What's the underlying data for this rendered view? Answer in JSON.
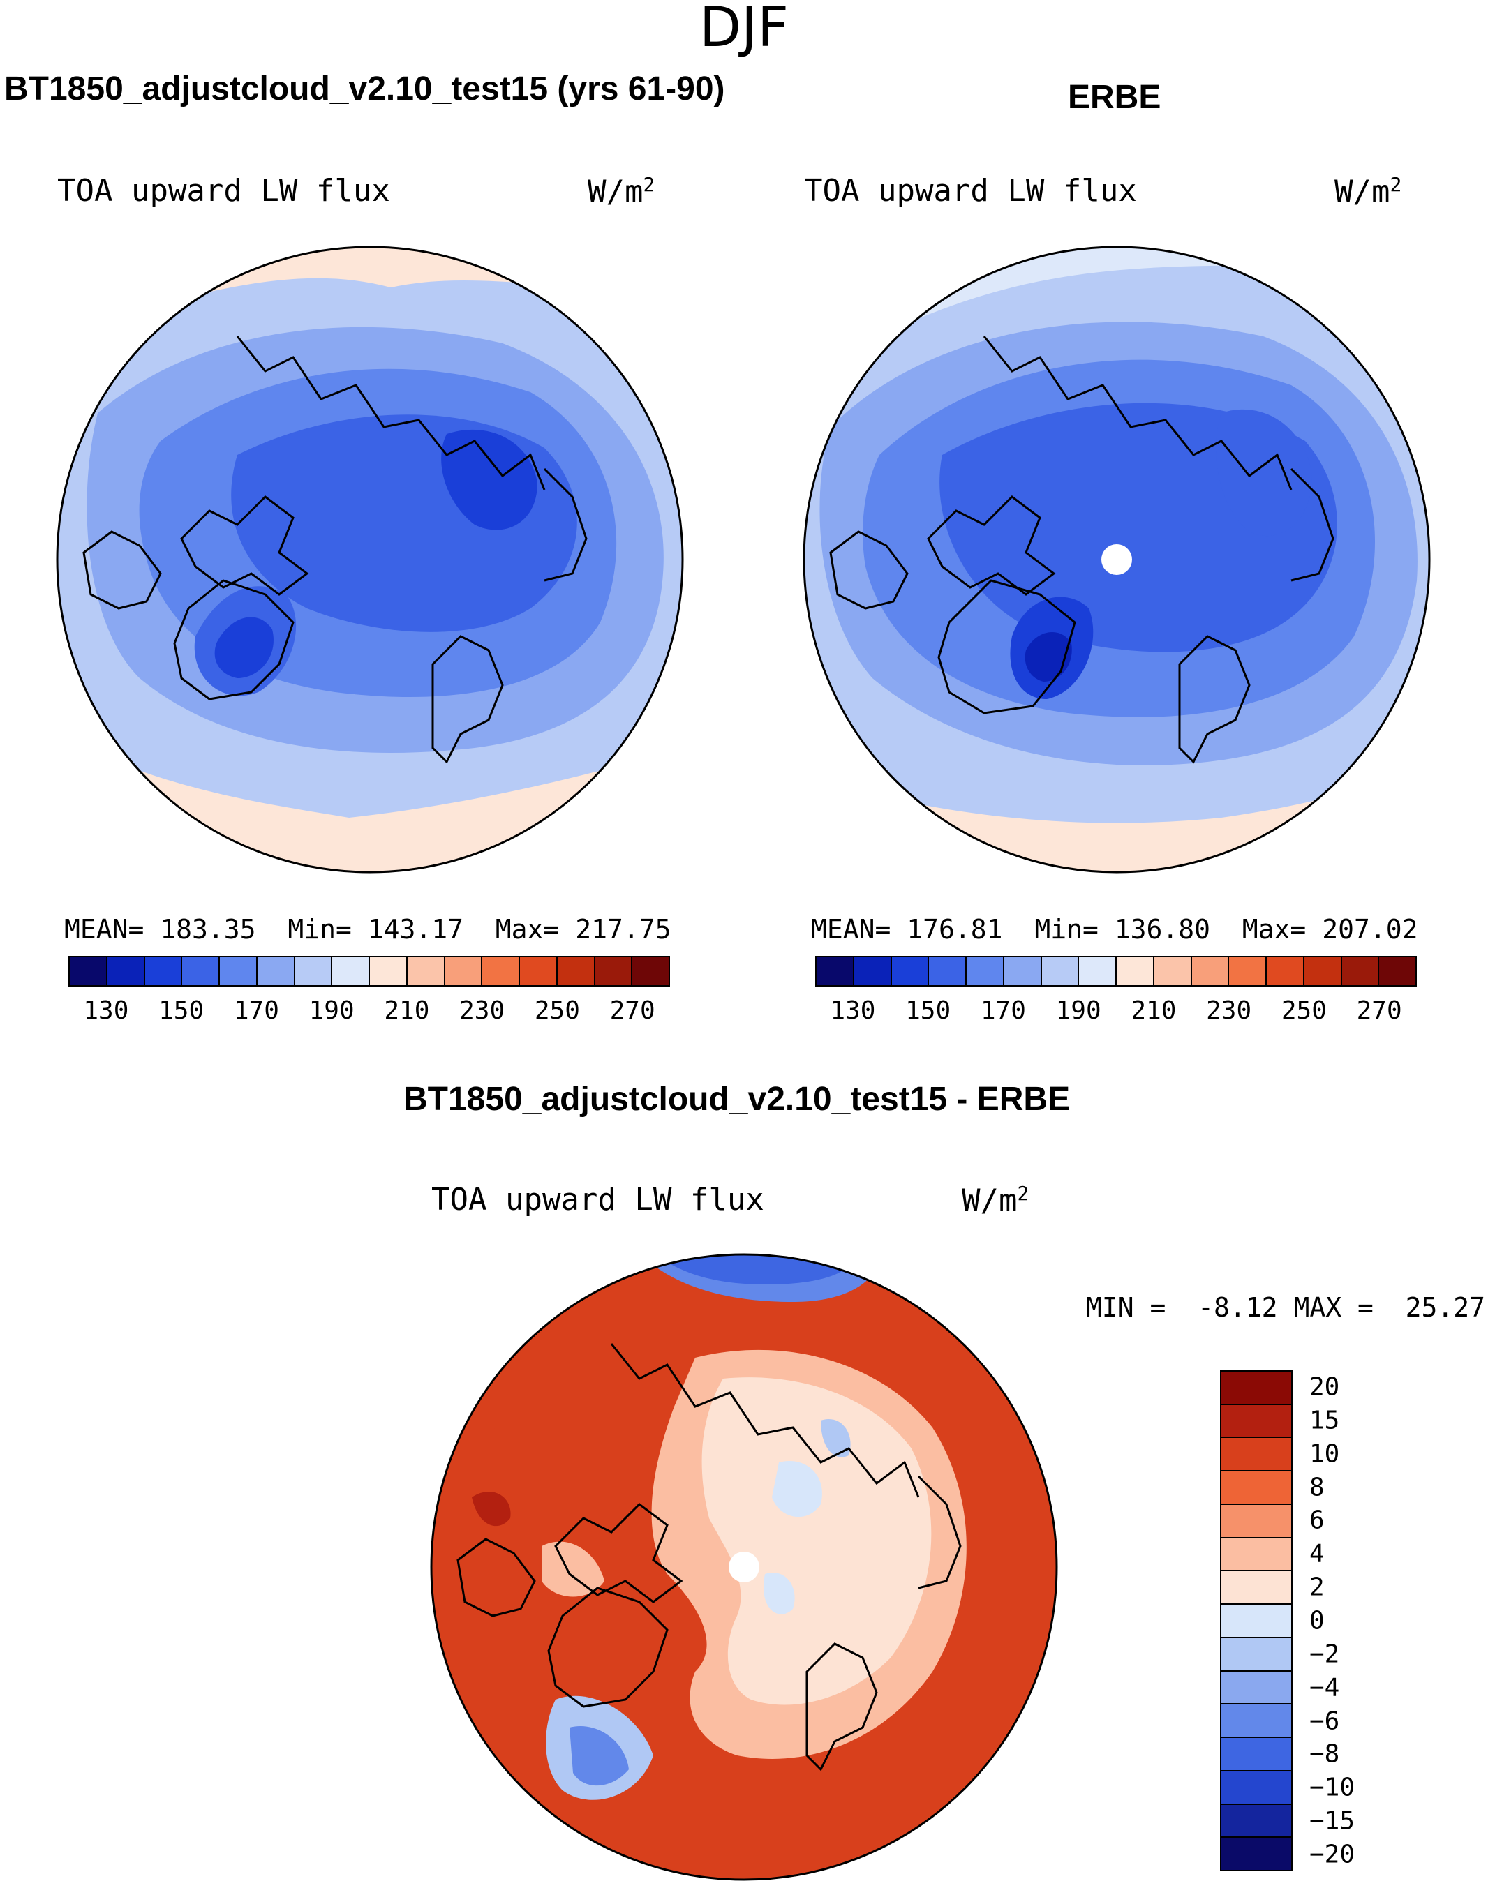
{
  "figure": {
    "season": "DJF"
  },
  "panels": [
    {
      "title": "BT1850_adjustcloud_v2.10_test15 (yrs 61-90)",
      "variable": "TOA upward LW flux",
      "units": "W/m",
      "units_exp": "2",
      "stats": {
        "mean_label": "MEAN=",
        "mean": "183.35",
        "min_label": "Min=",
        "min": "143.17",
        "max_label": "Max=",
        "max": "217.75"
      }
    },
    {
      "title": "ERBE",
      "variable": "TOA upward LW flux",
      "units": "W/m",
      "units_exp": "2",
      "stats": {
        "mean_label": "MEAN=",
        "mean": "176.81",
        "min_label": "Min=",
        "min": "136.80",
        "max_label": "Max=",
        "max": "207.02"
      }
    }
  ],
  "abs_colorbar": {
    "colors": [
      "#08086b",
      "#0a22b8",
      "#1a3fd8",
      "#3b63e6",
      "#5f86ee",
      "#8aa8f2",
      "#b7cbf6",
      "#dde8fa",
      "#fde6d8",
      "#fbc4aa",
      "#f89f7a",
      "#f27343",
      "#e04a20",
      "#c3300f",
      "#9a1a0a",
      "#6e0606"
    ],
    "ticks": [
      "130",
      "150",
      "170",
      "190",
      "210",
      "230",
      "250",
      "270"
    ]
  },
  "diff_panel": {
    "title": "BT1850_adjustcloud_v2.10_test15 - ERBE",
    "variable": "TOA upward LW flux",
    "units": "W/m",
    "units_exp": "2",
    "min_label": "MIN =",
    "min": "-8.12",
    "max_label": "MAX =",
    "max": "25.27"
  },
  "diff_colorbar": {
    "colors": [
      "#8b0a05",
      "#b32010",
      "#d8401c",
      "#ee6436",
      "#f6916a",
      "#fbbea2",
      "#fde3d4",
      "#d7e6fa",
      "#b0c8f4",
      "#8aa8ef",
      "#6288ea",
      "#3e66e2",
      "#2446cf",
      "#14259e",
      "#0a0a68"
    ],
    "ticks": [
      "20",
      "15",
      "10",
      "8",
      "6",
      "4",
      "2",
      "0",
      "−2",
      "−4",
      "−6",
      "−8",
      "−10",
      "−15",
      "−20"
    ]
  }
}
